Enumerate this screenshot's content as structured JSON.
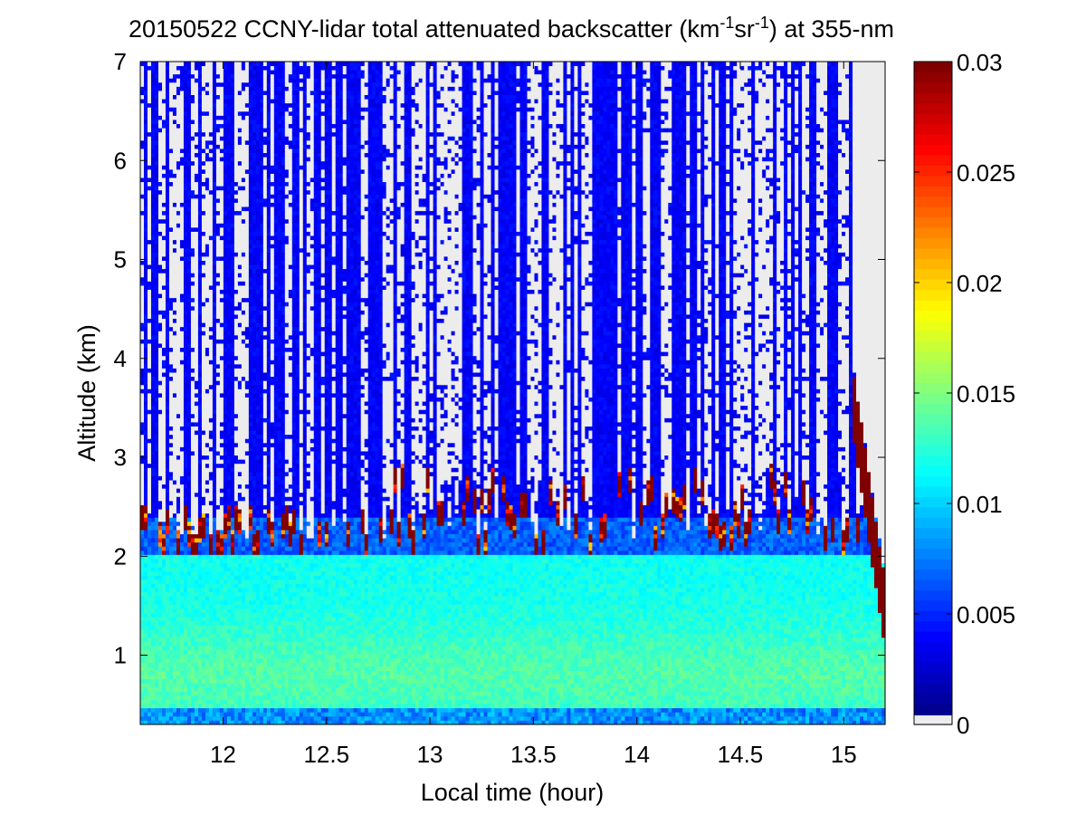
{
  "chart_data": {
    "type": "heatmap",
    "title": "20150522 CCNY-lidar total attenuated backscatter (km",
    "title_sup1": "-1",
    "title_mid": "sr",
    "title_sup2": "-1",
    "title_end": ") at 355-nm",
    "xlabel": "Local time (hour)",
    "ylabel": "Altitude (km)",
    "xlim": [
      11.6,
      15.2
    ],
    "ylim": [
      0.3,
      7
    ],
    "xticks": [
      12,
      12.5,
      13,
      13.5,
      14,
      14.5,
      15
    ],
    "xtick_labels": [
      "12",
      "12.5",
      "13",
      "13.5",
      "14",
      "14.5",
      "15"
    ],
    "yticks": [
      1,
      2,
      3,
      4,
      5,
      6,
      7
    ],
    "ytick_labels": [
      "1",
      "2",
      "3",
      "4",
      "5",
      "6",
      "7"
    ],
    "colorbar": {
      "range": [
        0,
        0.03
      ],
      "ticks": [
        0,
        0.005,
        0.01,
        0.015,
        0.02,
        0.025,
        0.03
      ],
      "tick_labels": [
        "0",
        "0.005",
        "0.01",
        "0.015",
        "0.02",
        "0.025",
        "0.03"
      ],
      "colormap": "jet",
      "below_range_color": "#ececec"
    },
    "features": {
      "aerosol_layer_top_km": 2.0,
      "near_surface_backscatter": 0.012,
      "upper_troposphere_backscatter": 0.004,
      "cloud_base_km_range": [
        1.95,
        2.7
      ],
      "cloud_backscatter": 0.03,
      "clear_sky_start_hour": 14.3,
      "late_cloud_descending": {
        "start_hour": 15.05,
        "start_km": 3.5,
        "end_hour": 15.2,
        "end_km": 1.4
      }
    }
  },
  "colors": {
    "background": "#ffffff",
    "missing": "#ececec",
    "cloud": "#800000"
  }
}
